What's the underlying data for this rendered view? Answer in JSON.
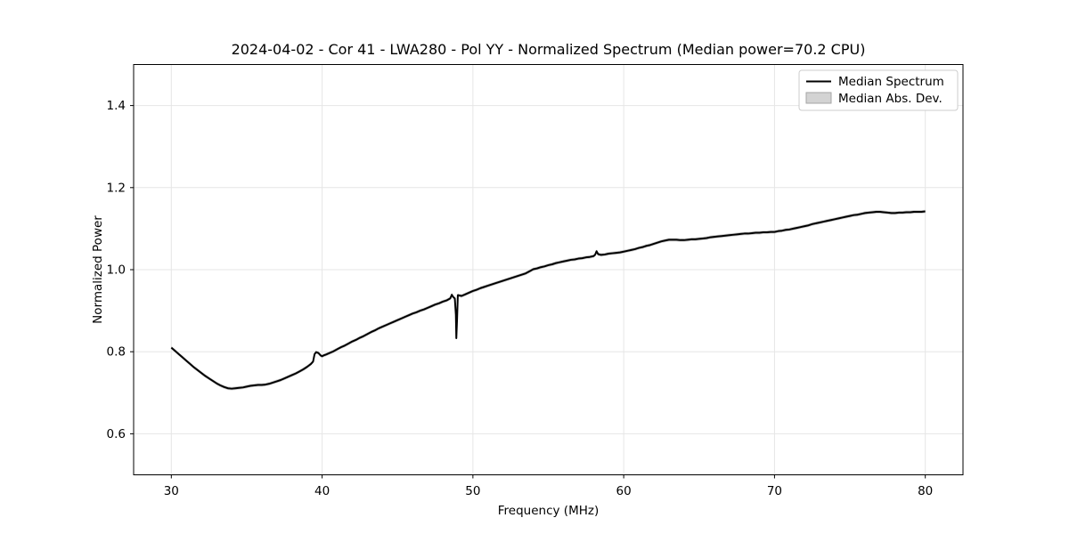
{
  "page": {
    "background": "#ffffff"
  },
  "colors": {
    "line": "#000000",
    "grid": "#e6e6e6",
    "spine": "#000000",
    "band": "#c9c9c9",
    "legend_border": "#cccccc",
    "legend_patch_fill": "#d3d3d3",
    "legend_patch_edge": "#a6a6a6"
  },
  "chart_data": {
    "type": "line",
    "title": "2024-04-02 - Cor 41 - LWA280 - Pol YY - Normalized Spectrum (Median power=70.2 CPU)",
    "xlabel": "Frequency (MHz)",
    "ylabel": "Normalized Power",
    "xlim": [
      27.5,
      82.5
    ],
    "ylim": [
      0.5,
      1.5
    ],
    "xticks": [
      30,
      40,
      50,
      60,
      70,
      80
    ],
    "yticks": [
      0.6,
      0.8,
      1.0,
      1.2,
      1.4
    ],
    "grid": true,
    "legend": {
      "position": "upper right",
      "entries": [
        {
          "label": "Median Spectrum",
          "type": "line",
          "color": "#000000"
        },
        {
          "label": "Median Abs. Dev.",
          "type": "patch",
          "color": "#d3d3d3"
        }
      ]
    },
    "mad_band_halfwidth": 0.004,
    "series": [
      {
        "name": "Median Spectrum",
        "x": [
          30,
          30.25,
          30.5,
          30.75,
          31,
          31.25,
          31.5,
          31.75,
          32,
          32.25,
          32.5,
          32.75,
          33,
          33.25,
          33.5,
          33.75,
          34,
          34.25,
          34.5,
          34.75,
          35,
          35.25,
          35.5,
          35.75,
          36,
          36.25,
          36.5,
          36.75,
          37,
          37.25,
          37.5,
          37.75,
          38,
          38.25,
          38.5,
          38.75,
          39,
          39.25,
          39.4,
          39.5,
          39.6,
          39.75,
          39.9,
          40,
          40.1,
          40.25,
          40.5,
          40.75,
          41,
          41.25,
          41.5,
          41.75,
          42,
          42.25,
          42.5,
          42.75,
          43,
          43.25,
          43.5,
          43.75,
          44,
          44.25,
          44.5,
          44.75,
          45,
          45.25,
          45.5,
          45.75,
          46,
          46.25,
          46.5,
          46.75,
          47,
          47.25,
          47.5,
          47.75,
          48,
          48.25,
          48.5,
          48.6,
          48.7,
          48.8,
          48.87,
          48.9,
          48.95,
          49,
          49.1,
          49.25,
          49.5,
          49.75,
          50,
          50.25,
          50.5,
          50.75,
          51,
          51.25,
          51.5,
          51.75,
          52,
          52.25,
          52.5,
          52.75,
          53,
          53.25,
          53.5,
          53.75,
          54,
          54.25,
          54.5,
          54.75,
          55,
          55.25,
          55.5,
          55.75,
          56,
          56.25,
          56.5,
          56.75,
          57,
          57.25,
          57.5,
          57.75,
          58,
          58.1,
          58.2,
          58.3,
          58.5,
          58.75,
          59,
          59.25,
          59.5,
          59.75,
          60,
          60.25,
          60.5,
          60.75,
          61,
          61.25,
          61.5,
          61.75,
          62,
          62.25,
          62.5,
          62.75,
          63,
          63.25,
          63.5,
          63.75,
          64,
          64.25,
          64.5,
          64.75,
          65,
          65.25,
          65.5,
          65.75,
          66,
          66.25,
          66.5,
          66.75,
          67,
          67.25,
          67.5,
          67.75,
          68,
          68.25,
          68.5,
          68.75,
          69,
          69.25,
          69.5,
          69.75,
          70,
          70.25,
          70.5,
          70.75,
          71,
          71.25,
          71.5,
          71.75,
          72,
          72.25,
          72.5,
          72.75,
          73,
          73.25,
          73.5,
          73.75,
          74,
          74.25,
          74.5,
          74.75,
          75,
          75.25,
          75.5,
          75.75,
          76,
          76.25,
          76.5,
          76.75,
          77,
          77.25,
          77.5,
          77.75,
          78,
          78.25,
          78.5,
          78.75,
          79,
          79.25,
          79.5,
          79.75,
          80
        ],
        "y": [
          0.81,
          0.802,
          0.794,
          0.786,
          0.778,
          0.77,
          0.762,
          0.755,
          0.748,
          0.741,
          0.735,
          0.729,
          0.723,
          0.718,
          0.714,
          0.711,
          0.71,
          0.711,
          0.712,
          0.713,
          0.715,
          0.717,
          0.718,
          0.719,
          0.719,
          0.72,
          0.722,
          0.725,
          0.728,
          0.731,
          0.735,
          0.739,
          0.743,
          0.747,
          0.752,
          0.757,
          0.763,
          0.77,
          0.776,
          0.794,
          0.799,
          0.797,
          0.791,
          0.789,
          0.791,
          0.793,
          0.797,
          0.801,
          0.806,
          0.811,
          0.815,
          0.82,
          0.825,
          0.829,
          0.834,
          0.838,
          0.843,
          0.848,
          0.852,
          0.857,
          0.861,
          0.865,
          0.869,
          0.873,
          0.877,
          0.881,
          0.885,
          0.889,
          0.893,
          0.896,
          0.9,
          0.903,
          0.907,
          0.911,
          0.915,
          0.918,
          0.922,
          0.925,
          0.93,
          0.939,
          0.933,
          0.93,
          0.89,
          0.833,
          0.88,
          0.938,
          0.937,
          0.936,
          0.94,
          0.944,
          0.948,
          0.951,
          0.955,
          0.958,
          0.961,
          0.964,
          0.967,
          0.97,
          0.973,
          0.976,
          0.979,
          0.982,
          0.985,
          0.988,
          0.991,
          0.996,
          1.001,
          1.003,
          1.006,
          1.008,
          1.011,
          1.013,
          1.016,
          1.018,
          1.02,
          1.022,
          1.024,
          1.025,
          1.027,
          1.028,
          1.03,
          1.031,
          1.033,
          1.036,
          1.045,
          1.038,
          1.036,
          1.037,
          1.039,
          1.04,
          1.041,
          1.042,
          1.044,
          1.046,
          1.048,
          1.05,
          1.053,
          1.055,
          1.058,
          1.06,
          1.063,
          1.066,
          1.069,
          1.071,
          1.073,
          1.073,
          1.073,
          1.072,
          1.072,
          1.073,
          1.074,
          1.074,
          1.075,
          1.076,
          1.077,
          1.079,
          1.08,
          1.081,
          1.082,
          1.083,
          1.084,
          1.085,
          1.086,
          1.087,
          1.088,
          1.088,
          1.089,
          1.09,
          1.09,
          1.091,
          1.091,
          1.092,
          1.092,
          1.094,
          1.095,
          1.097,
          1.098,
          1.1,
          1.102,
          1.104,
          1.106,
          1.108,
          1.111,
          1.113,
          1.115,
          1.117,
          1.119,
          1.121,
          1.123,
          1.125,
          1.127,
          1.129,
          1.131,
          1.133,
          1.134,
          1.136,
          1.138,
          1.139,
          1.14,
          1.141,
          1.141,
          1.14,
          1.139,
          1.138,
          1.138,
          1.139,
          1.139,
          1.14,
          1.14,
          1.141,
          1.141,
          1.141,
          1.142
        ]
      }
    ]
  }
}
